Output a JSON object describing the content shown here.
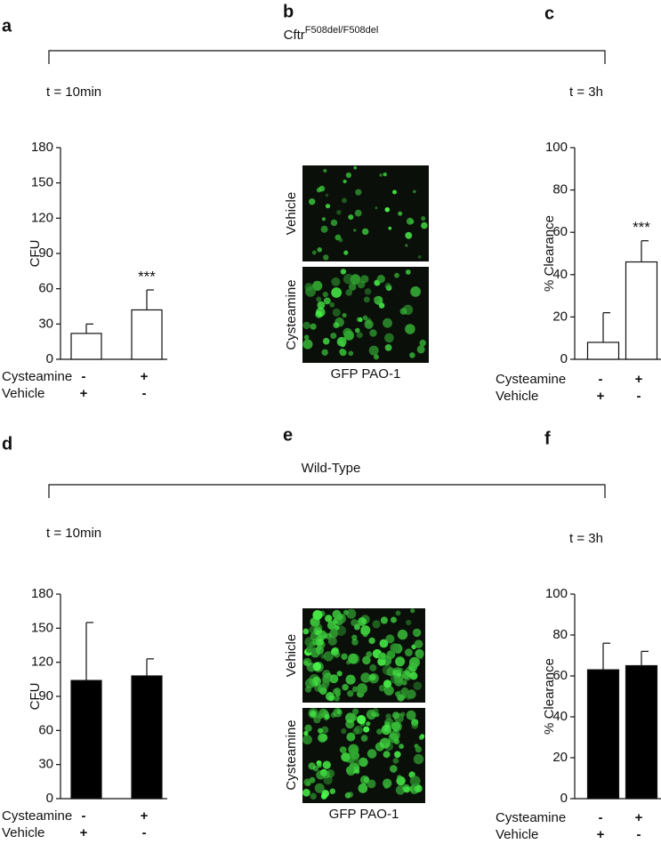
{
  "panel_labels": [
    "a",
    "b",
    "c",
    "d",
    "e",
    "f"
  ],
  "groups": [
    {
      "title": "Cftr",
      "superscript": "F508del/F508del"
    },
    {
      "title": "Wild-Type"
    }
  ],
  "images": [
    {
      "rows": [
        "Vehicle",
        "Cysteamine"
      ],
      "caption": "GFP PAO-1"
    },
    {
      "rows": [
        "Vehicle",
        "Cysteamine"
      ],
      "caption": "GFP PAO-1"
    }
  ],
  "chart_data": [
    {
      "type": "bar",
      "annotation": "t = 10min",
      "ylabel": "CFU",
      "conditions": [
        {
          "name": "Cysteamine",
          "signs": [
            "-",
            "+"
          ]
        },
        {
          "name": "Vehicle",
          "signs": [
            "+",
            "-"
          ]
        }
      ],
      "values": [
        22,
        42
      ],
      "errors": [
        8,
        17
      ],
      "significance": [
        null,
        "***"
      ],
      "color": "#ffffff",
      "ylim": [
        0,
        180
      ],
      "yticks": [
        0,
        30,
        60,
        90,
        120,
        150,
        180
      ]
    },
    {
      "type": "bar",
      "annotation": "t = 3h",
      "ylabel": "% Clearance",
      "conditions": [
        {
          "name": "Cysteamine",
          "signs": [
            "-",
            "+"
          ]
        },
        {
          "name": "Vehicle",
          "signs": [
            "+",
            "-"
          ]
        }
      ],
      "values": [
        8,
        46
      ],
      "errors": [
        14,
        10
      ],
      "significance": [
        null,
        "***"
      ],
      "color": "#ffffff",
      "ylim": [
        0,
        100
      ],
      "yticks": [
        0,
        20,
        40,
        60,
        80,
        100
      ]
    },
    {
      "type": "bar",
      "annotation": "t = 10min",
      "ylabel": "CFU",
      "conditions": [
        {
          "name": "Cysteamine",
          "signs": [
            "-",
            "+"
          ]
        },
        {
          "name": "Vehicle",
          "signs": [
            "+",
            "-"
          ]
        }
      ],
      "values": [
        104,
        108
      ],
      "errors": [
        51,
        15
      ],
      "significance": [
        null,
        null
      ],
      "color": "#000000",
      "ylim": [
        0,
        180
      ],
      "yticks": [
        0,
        30,
        60,
        90,
        120,
        150,
        180
      ]
    },
    {
      "type": "bar",
      "annotation": "t = 3h",
      "ylabel": "% Clearance",
      "conditions": [
        {
          "name": "Cysteamine",
          "signs": [
            "-",
            "+"
          ]
        },
        {
          "name": "Vehicle",
          "signs": [
            "+",
            "-"
          ]
        }
      ],
      "values": [
        63,
        65
      ],
      "errors": [
        13,
        7
      ],
      "significance": [
        null,
        null
      ],
      "color": "#000000",
      "ylim": [
        0,
        100
      ],
      "yticks": [
        0,
        20,
        40,
        60,
        80,
        100
      ]
    }
  ]
}
